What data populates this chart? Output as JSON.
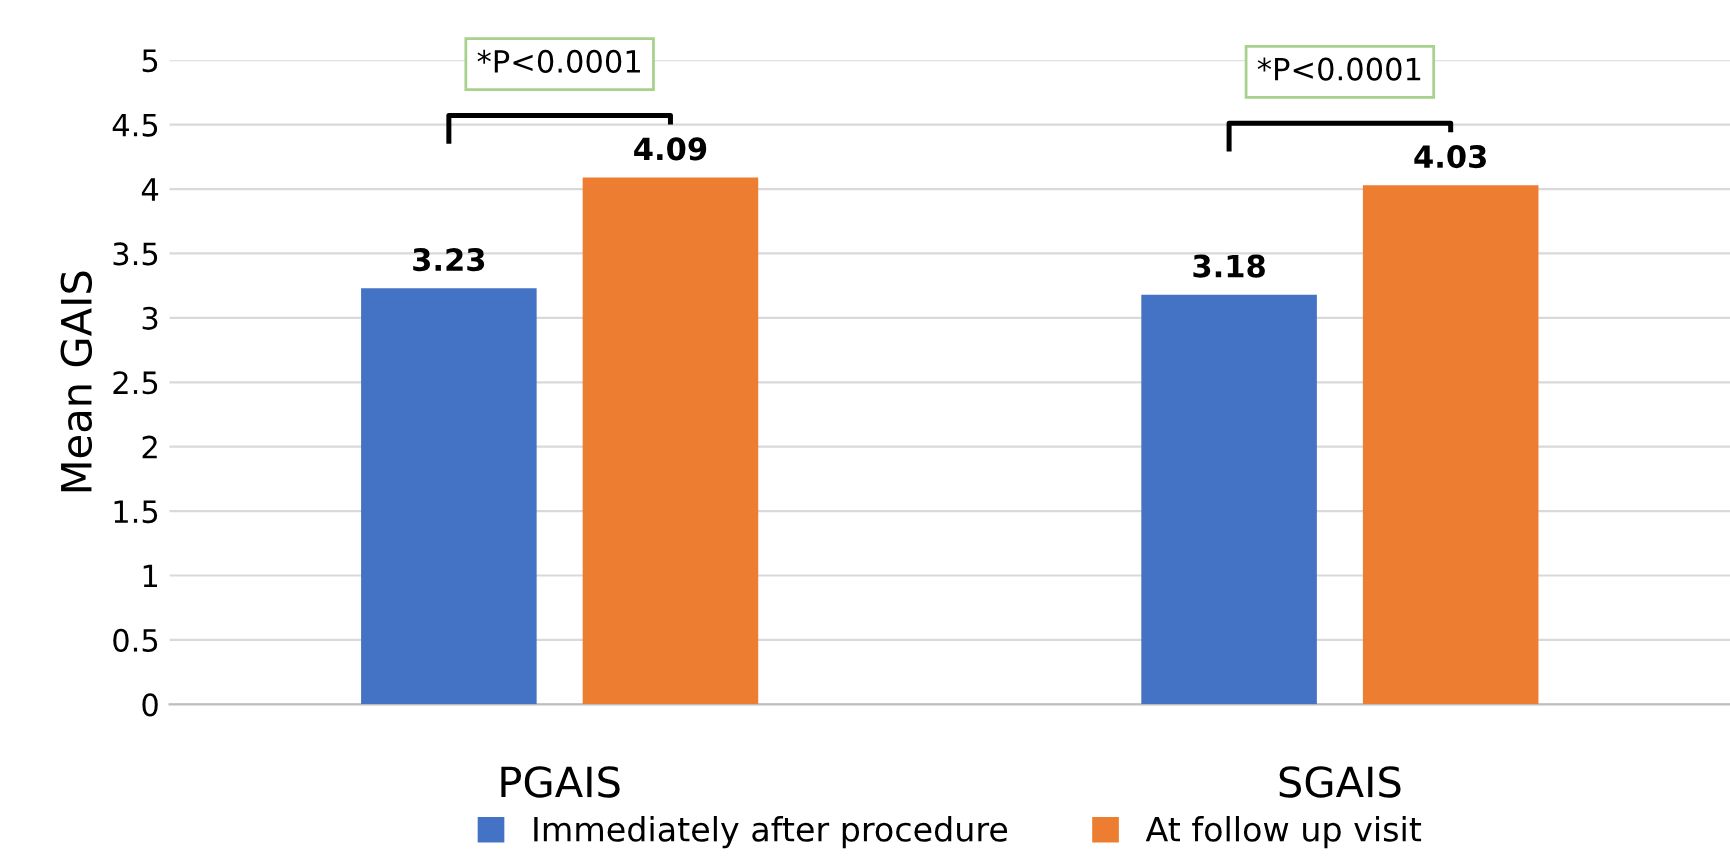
{
  "chart_data": {
    "type": "bar",
    "ylabel": "Mean GAIS",
    "categories": [
      "PGAIS",
      "SGAIS"
    ],
    "series": [
      {
        "name": "Immediately after procedure",
        "color": "#4472c4",
        "values": [
          3.23,
          3.18
        ]
      },
      {
        "name": "At follow up visit",
        "color": "#ed7d31",
        "values": [
          4.09,
          4.03
        ]
      }
    ],
    "ylim": [
      0,
      5
    ],
    "yticks": [
      0,
      0.5,
      1,
      1.5,
      2,
      2.5,
      3,
      3.5,
      4,
      4.5,
      5
    ],
    "grid": "y",
    "legend": "bottom",
    "data_labels": true,
    "annotations": [
      "*P<0.0001",
      "*P<0.0001"
    ]
  }
}
